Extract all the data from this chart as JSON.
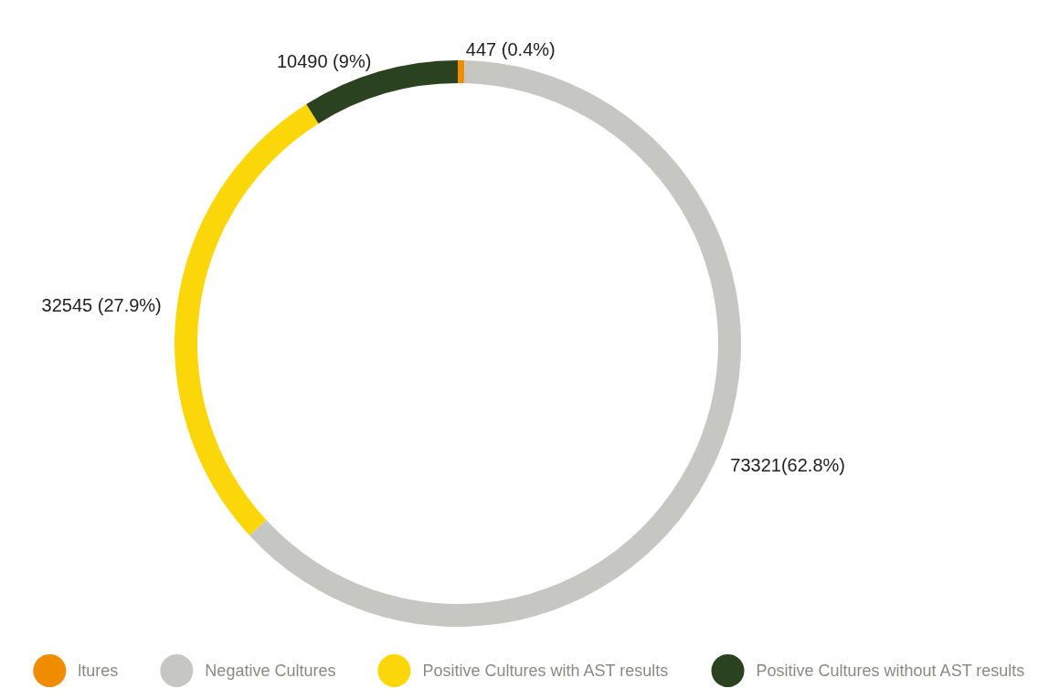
{
  "chart_data": {
    "type": "donut",
    "categories": [
      "ltures",
      "Negative Cultures",
      "Positive Cultures with AST results",
      "Positive Cultures without AST results"
    ],
    "values": [
      447,
      73321,
      32545,
      10490
    ],
    "value_labels": [
      "447 (0.4%)",
      "73321(62.8%)",
      "32545 (27.9%)",
      "10490 (9%)"
    ],
    "colors": [
      "#f08c00",
      "#c6c7c2",
      "#fbd70a",
      "#2a4220"
    ],
    "legend": "bottom"
  }
}
